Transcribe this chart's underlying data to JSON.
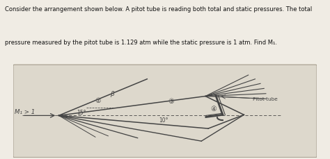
{
  "title_line1": "Consider the arrangement shown below. A pitot tube is reading both total and static pressures. The total",
  "title_line2": "pressure measured by the pitot tube is 1.129 atm while the static pressure is 1 atm. Find M₁.",
  "bg_color": "#f0ece4",
  "box_bg": "#ddd8cc",
  "text_color": "#111111",
  "diagram_color": "#444444",
  "label_M1": "M₁ > 1",
  "label_15": "15°",
  "label_10": "10°",
  "label_beta": "β",
  "label_pitot": "Pitot tube",
  "region2": "②",
  "region3": "③",
  "region4": "④"
}
